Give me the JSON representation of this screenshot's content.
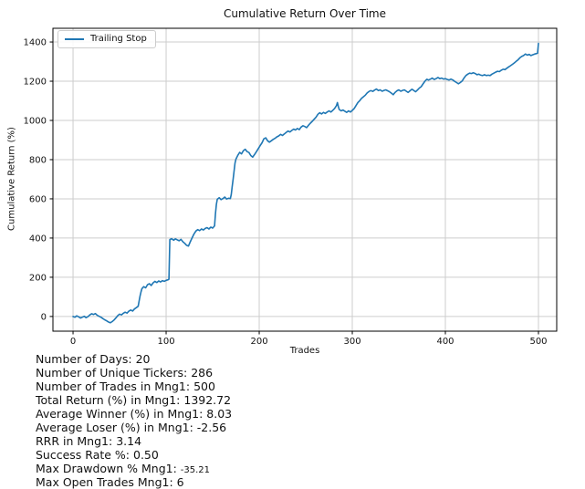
{
  "chart_data": {
    "type": "line",
    "title": "Cumulative Return Over Time",
    "xlabel": "Trades",
    "ylabel": "Cumulative Return (%)",
    "grid": true,
    "legend_position": "upper-left",
    "legend": [
      {
        "label": "Trailing Stop",
        "color": "#1f77b4"
      }
    ],
    "xticks": [
      0,
      100,
      200,
      300,
      400,
      500
    ],
    "yticks": [
      0,
      200,
      400,
      600,
      800,
      1000,
      1200,
      1400
    ],
    "xlim": [
      -21.6,
      519.6
    ],
    "ylim": [
      -75,
      1470
    ],
    "colors": {
      "line": "#1f77b4",
      "grid": "#cdcdcd",
      "spine": "#000000",
      "text": "#111111"
    },
    "series": [
      {
        "name": "Trailing Stop",
        "points": [
          [
            0,
            0
          ],
          [
            2,
            -4
          ],
          [
            4,
            3
          ],
          [
            6,
            -2
          ],
          [
            8,
            -8
          ],
          [
            10,
            -4
          ],
          [
            12,
            1
          ],
          [
            14,
            -6
          ],
          [
            16,
            -1
          ],
          [
            18,
            8
          ],
          [
            20,
            14
          ],
          [
            22,
            10
          ],
          [
            24,
            15
          ],
          [
            26,
            6
          ],
          [
            28,
            1
          ],
          [
            30,
            -4
          ],
          [
            32,
            -11
          ],
          [
            34,
            -17
          ],
          [
            36,
            -22
          ],
          [
            38,
            -28
          ],
          [
            40,
            -32
          ],
          [
            42,
            -26
          ],
          [
            44,
            -18
          ],
          [
            46,
            -8
          ],
          [
            48,
            4
          ],
          [
            50,
            12
          ],
          [
            52,
            8
          ],
          [
            54,
            16
          ],
          [
            56,
            22
          ],
          [
            58,
            17
          ],
          [
            60,
            27
          ],
          [
            62,
            33
          ],
          [
            64,
            28
          ],
          [
            66,
            38
          ],
          [
            68,
            45
          ],
          [
            70,
            52
          ],
          [
            71,
            78
          ],
          [
            72,
            105
          ],
          [
            73,
            125
          ],
          [
            74,
            142
          ],
          [
            76,
            152
          ],
          [
            78,
            146
          ],
          [
            80,
            162
          ],
          [
            82,
            167
          ],
          [
            84,
            158
          ],
          [
            86,
            171
          ],
          [
            88,
            179
          ],
          [
            90,
            173
          ],
          [
            92,
            181
          ],
          [
            94,
            176
          ],
          [
            96,
            183
          ],
          [
            98,
            179
          ],
          [
            100,
            184
          ],
          [
            102,
            187
          ],
          [
            103,
            190
          ],
          [
            104,
            392
          ],
          [
            106,
            397
          ],
          [
            108,
            389
          ],
          [
            110,
            396
          ],
          [
            112,
            391
          ],
          [
            114,
            386
          ],
          [
            116,
            393
          ],
          [
            118,
            381
          ],
          [
            120,
            373
          ],
          [
            122,
            363
          ],
          [
            124,
            359
          ],
          [
            126,
            381
          ],
          [
            128,
            402
          ],
          [
            130,
            421
          ],
          [
            132,
            436
          ],
          [
            134,
            443
          ],
          [
            136,
            438
          ],
          [
            138,
            446
          ],
          [
            140,
            441
          ],
          [
            142,
            449
          ],
          [
            144,
            453
          ],
          [
            146,
            446
          ],
          [
            148,
            456
          ],
          [
            150,
            451
          ],
          [
            152,
            462
          ],
          [
            153,
            525
          ],
          [
            154,
            572
          ],
          [
            155,
            598
          ],
          [
            157,
            606
          ],
          [
            159,
            596
          ],
          [
            161,
            601
          ],
          [
            163,
            609
          ],
          [
            165,
            599
          ],
          [
            167,
            603
          ],
          [
            169,
            601
          ],
          [
            170,
            622
          ],
          [
            171,
            662
          ],
          [
            172,
            702
          ],
          [
            173,
            742
          ],
          [
            174,
            782
          ],
          [
            175,
            802
          ],
          [
            177,
            822
          ],
          [
            179,
            837
          ],
          [
            181,
            829
          ],
          [
            183,
            846
          ],
          [
            185,
            853
          ],
          [
            187,
            841
          ],
          [
            189,
            836
          ],
          [
            191,
            821
          ],
          [
            193,
            813
          ],
          [
            195,
            826
          ],
          [
            197,
            841
          ],
          [
            199,
            856
          ],
          [
            201,
            871
          ],
          [
            203,
            886
          ],
          [
            205,
            906
          ],
          [
            207,
            911
          ],
          [
            209,
            896
          ],
          [
            211,
            889
          ],
          [
            213,
            896
          ],
          [
            215,
            903
          ],
          [
            217,
            909
          ],
          [
            219,
            916
          ],
          [
            221,
            921
          ],
          [
            223,
            929
          ],
          [
            225,
            923
          ],
          [
            227,
            931
          ],
          [
            229,
            939
          ],
          [
            231,
            946
          ],
          [
            233,
            941
          ],
          [
            235,
            949
          ],
          [
            237,
            956
          ],
          [
            239,
            951
          ],
          [
            241,
            959
          ],
          [
            243,
            953
          ],
          [
            245,
            966
          ],
          [
            247,
            973
          ],
          [
            249,
            969
          ],
          [
            251,
            963
          ],
          [
            253,
            976
          ],
          [
            255,
            986
          ],
          [
            257,
            996
          ],
          [
            259,
            1006
          ],
          [
            261,
            1016
          ],
          [
            263,
            1031
          ],
          [
            265,
            1039
          ],
          [
            267,
            1033
          ],
          [
            269,
            1041
          ],
          [
            271,
            1036
          ],
          [
            273,
            1043
          ],
          [
            275,
            1049
          ],
          [
            277,
            1043
          ],
          [
            279,
            1051
          ],
          [
            281,
            1061
          ],
          [
            283,
            1076
          ],
          [
            284,
            1091
          ],
          [
            285,
            1071
          ],
          [
            286,
            1056
          ],
          [
            288,
            1049
          ],
          [
            290,
            1053
          ],
          [
            292,
            1047
          ],
          [
            294,
            1041
          ],
          [
            296,
            1049
          ],
          [
            298,
            1043
          ],
          [
            300,
            1051
          ],
          [
            302,
            1061
          ],
          [
            304,
            1076
          ],
          [
            306,
            1091
          ],
          [
            308,
            1101
          ],
          [
            310,
            1113
          ],
          [
            312,
            1121
          ],
          [
            314,
            1129
          ],
          [
            316,
            1140
          ],
          [
            318,
            1148
          ],
          [
            320,
            1152
          ],
          [
            322,
            1148
          ],
          [
            324,
            1155
          ],
          [
            326,
            1160
          ],
          [
            328,
            1152
          ],
          [
            330,
            1156
          ],
          [
            332,
            1149
          ],
          [
            334,
            1153
          ],
          [
            336,
            1156
          ],
          [
            338,
            1151
          ],
          [
            340,
            1146
          ],
          [
            342,
            1139
          ],
          [
            344,
            1131
          ],
          [
            346,
            1143
          ],
          [
            348,
            1151
          ],
          [
            350,
            1156
          ],
          [
            352,
            1149
          ],
          [
            354,
            1153
          ],
          [
            356,
            1156
          ],
          [
            358,
            1149
          ],
          [
            360,
            1143
          ],
          [
            362,
            1151
          ],
          [
            364,
            1159
          ],
          [
            366,
            1153
          ],
          [
            368,
            1146
          ],
          [
            370,
            1155
          ],
          [
            372,
            1165
          ],
          [
            374,
            1172
          ],
          [
            376,
            1186
          ],
          [
            378,
            1200
          ],
          [
            380,
            1210
          ],
          [
            382,
            1206
          ],
          [
            384,
            1211
          ],
          [
            386,
            1216
          ],
          [
            388,
            1209
          ],
          [
            390,
            1213
          ],
          [
            392,
            1219
          ],
          [
            394,
            1213
          ],
          [
            396,
            1216
          ],
          [
            398,
            1211
          ],
          [
            400,
            1213
          ],
          [
            402,
            1209
          ],
          [
            404,
            1206
          ],
          [
            406,
            1211
          ],
          [
            408,
            1206
          ],
          [
            410,
            1199
          ],
          [
            412,
            1193
          ],
          [
            414,
            1187
          ],
          [
            416,
            1193
          ],
          [
            418,
            1201
          ],
          [
            420,
            1216
          ],
          [
            422,
            1229
          ],
          [
            424,
            1236
          ],
          [
            426,
            1241
          ],
          [
            428,
            1239
          ],
          [
            430,
            1243
          ],
          [
            432,
            1239
          ],
          [
            434,
            1233
          ],
          [
            436,
            1236
          ],
          [
            438,
            1231
          ],
          [
            440,
            1229
          ],
          [
            442,
            1233
          ],
          [
            444,
            1229
          ],
          [
            446,
            1231
          ],
          [
            448,
            1229
          ],
          [
            450,
            1236
          ],
          [
            452,
            1241
          ],
          [
            454,
            1246
          ],
          [
            456,
            1251
          ],
          [
            458,
            1249
          ],
          [
            460,
            1256
          ],
          [
            462,
            1261
          ],
          [
            464,
            1259
          ],
          [
            466,
            1266
          ],
          [
            468,
            1273
          ],
          [
            470,
            1279
          ],
          [
            472,
            1286
          ],
          [
            474,
            1293
          ],
          [
            476,
            1301
          ],
          [
            478,
            1309
          ],
          [
            480,
            1319
          ],
          [
            482,
            1326
          ],
          [
            484,
            1331
          ],
          [
            486,
            1339
          ],
          [
            488,
            1333
          ],
          [
            490,
            1337
          ],
          [
            492,
            1331
          ],
          [
            494,
            1335
          ],
          [
            496,
            1339
          ],
          [
            498,
            1341
          ],
          [
            499,
            1343
          ],
          [
            500,
            1392.72
          ]
        ]
      }
    ]
  },
  "stats": {
    "lines": [
      {
        "label": "Number of Days:",
        "value": "20"
      },
      {
        "label": "Number of Unique Tickers:",
        "value": "286"
      },
      {
        "label": "Number of Trades in Mng1:",
        "value": "500"
      },
      {
        "label": "Total Return (%) in Mng1:",
        "value": "1392.72"
      },
      {
        "label": "Average Winner (%) in Mng1:",
        "value": "8.03"
      },
      {
        "label": "Average Loser (%) in Mng1:",
        "value": "-2.56"
      },
      {
        "label": "RRR in Mng1:",
        "value": "3.14"
      },
      {
        "label": "Success Rate %:",
        "value": "0.50"
      },
      {
        "label": "Max Drawdown % Mng1:",
        "value": "-35.21",
        "small_value": true
      },
      {
        "label": "Max Open Trades Mng1:",
        "value": "6"
      }
    ]
  }
}
